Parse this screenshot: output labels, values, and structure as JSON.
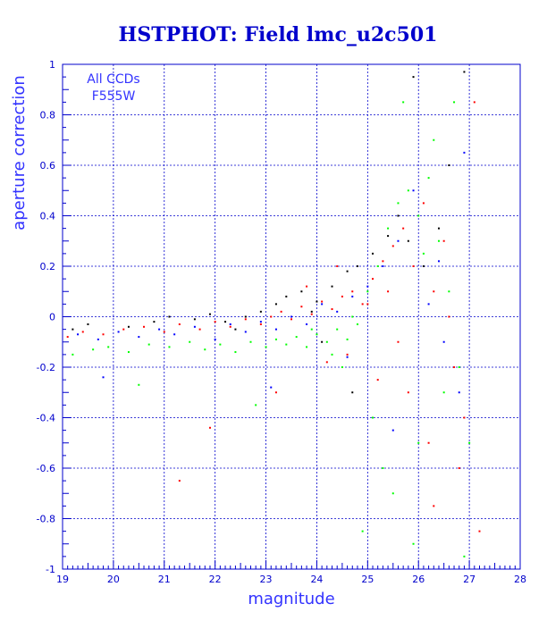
{
  "chart_data": {
    "type": "scatter",
    "title": "HSTPHOT: Field lmc_u2c501",
    "xlabel": "magnitude",
    "ylabel": "aperture correction",
    "annotation": [
      "All CCDs",
      "F555W"
    ],
    "xlim": [
      19,
      28
    ],
    "ylim": [
      -1,
      1
    ],
    "x_ticks": [
      19,
      20,
      21,
      22,
      23,
      24,
      25,
      26,
      27,
      28
    ],
    "y_ticks": [
      -1,
      -0.8,
      -0.6,
      -0.4,
      -0.2,
      0,
      0.2,
      0.4,
      0.6,
      0.8,
      1
    ],
    "x_tick_labels": [
      "19",
      "20",
      "21",
      "22",
      "23",
      "24",
      "25",
      "26",
      "27",
      "28"
    ],
    "y_tick_labels": [
      "-1",
      "-0.8",
      "-0.6",
      "-0.4",
      "-0.2",
      "0",
      "0.2",
      "0.4",
      "0.6",
      "0.8",
      "1"
    ],
    "grid": true,
    "colors": {
      "axes": "#0000cc",
      "grid": "#0000cc",
      "title": "#0000cc",
      "text": "#3333ff",
      "series_red": "#ff0000",
      "series_green": "#00ff00",
      "series_blue": "#0000ff",
      "series_black": "#000000"
    },
    "series": [
      {
        "color": "#000000",
        "x": [
          19.2,
          19.5,
          20.3,
          20.8,
          21.1,
          21.6,
          21.9,
          22.2,
          22.6,
          22.9,
          23.2,
          23.4,
          23.7,
          24.0,
          24.3,
          24.6,
          24.8,
          25.1,
          25.4,
          25.6,
          25.8,
          26.1,
          26.4,
          26.6,
          26.9,
          24.1,
          24.7,
          25.9,
          23.9,
          22.4
        ],
        "y": [
          -0.05,
          -0.03,
          -0.04,
          -0.02,
          0.0,
          -0.01,
          0.01,
          -0.02,
          0.0,
          0.02,
          0.05,
          0.08,
          0.1,
          0.06,
          0.12,
          0.18,
          0.2,
          0.25,
          0.32,
          0.4,
          0.3,
          0.2,
          0.35,
          0.6,
          0.97,
          -0.1,
          -0.3,
          0.95,
          0.02,
          -0.05
        ]
      },
      {
        "color": "#ff0000",
        "x": [
          19.1,
          19.4,
          19.8,
          20.2,
          20.6,
          21.0,
          21.3,
          21.7,
          22.0,
          22.3,
          22.6,
          22.9,
          23.1,
          23.3,
          23.5,
          23.7,
          23.9,
          24.1,
          24.3,
          24.5,
          24.7,
          24.9,
          25.1,
          25.3,
          25.5,
          25.7,
          25.9,
          26.1,
          26.3,
          26.5,
          26.7,
          26.9,
          27.1,
          21.3,
          21.9,
          23.2,
          24.2,
          25.2,
          25.6,
          26.2,
          26.8,
          27.2,
          25.4,
          24.6,
          26.6,
          25.8,
          23.8,
          24.4,
          26.3,
          25.0
        ],
        "y": [
          -0.08,
          -0.06,
          -0.07,
          -0.05,
          -0.04,
          -0.06,
          -0.03,
          -0.05,
          -0.02,
          -0.04,
          -0.01,
          -0.03,
          0.0,
          0.02,
          -0.01,
          0.04,
          0.01,
          0.06,
          0.03,
          0.08,
          0.1,
          0.05,
          0.15,
          0.22,
          0.28,
          0.35,
          0.2,
          0.45,
          0.1,
          0.3,
          -0.2,
          -0.4,
          0.85,
          -0.65,
          -0.44,
          -0.3,
          -0.18,
          -0.25,
          -0.1,
          -0.5,
          -0.6,
          -0.85,
          0.1,
          -0.15,
          0.0,
          -0.3,
          0.12,
          0.2,
          -0.75,
          0.05
        ]
      },
      {
        "color": "#00ff00",
        "x": [
          19.2,
          19.6,
          19.9,
          20.3,
          20.7,
          21.1,
          21.5,
          21.8,
          22.1,
          22.4,
          22.7,
          23.0,
          23.2,
          23.4,
          23.6,
          23.8,
          24.0,
          24.2,
          24.4,
          24.6,
          24.8,
          25.0,
          25.2,
          25.4,
          25.6,
          25.8,
          26.0,
          26.2,
          26.4,
          26.6,
          26.8,
          27.0,
          25.1,
          25.5,
          25.9,
          26.3,
          26.7,
          24.9,
          24.5,
          23.9,
          26.9,
          25.3,
          26.5,
          26.1,
          25.7,
          24.3,
          24.7,
          22.8,
          20.5,
          26.0
        ],
        "y": [
          -0.15,
          -0.13,
          -0.12,
          -0.14,
          -0.11,
          -0.12,
          -0.1,
          -0.13,
          -0.11,
          -0.14,
          -0.1,
          -0.12,
          -0.09,
          -0.11,
          -0.08,
          -0.12,
          -0.07,
          -0.1,
          -0.05,
          -0.09,
          -0.03,
          0.1,
          0.2,
          0.35,
          0.45,
          0.5,
          0.4,
          0.55,
          0.3,
          0.1,
          -0.2,
          -0.5,
          -0.4,
          -0.7,
          -0.9,
          0.7,
          0.85,
          -0.85,
          -0.2,
          -0.05,
          -0.95,
          -0.6,
          -0.3,
          0.25,
          0.85,
          -0.15,
          0.0,
          -0.35,
          -0.27,
          -0.5
        ]
      },
      {
        "color": "#0000ff",
        "x": [
          19.3,
          19.7,
          20.1,
          20.5,
          20.9,
          21.2,
          21.6,
          22.0,
          22.3,
          22.6,
          22.9,
          23.2,
          23.5,
          23.8,
          24.1,
          24.4,
          24.7,
          25.0,
          25.3,
          25.6,
          25.9,
          26.2,
          26.5,
          26.8,
          19.8,
          23.1,
          24.6,
          25.5,
          26.4,
          26.9
        ],
        "y": [
          -0.07,
          -0.09,
          -0.06,
          -0.08,
          -0.05,
          -0.07,
          -0.04,
          -0.09,
          -0.03,
          -0.06,
          -0.02,
          -0.05,
          0.0,
          -0.03,
          0.05,
          0.02,
          0.08,
          0.12,
          0.2,
          0.3,
          0.5,
          0.05,
          -0.1,
          -0.3,
          -0.24,
          -0.28,
          -0.16,
          -0.45,
          0.22,
          0.65
        ]
      }
    ]
  }
}
